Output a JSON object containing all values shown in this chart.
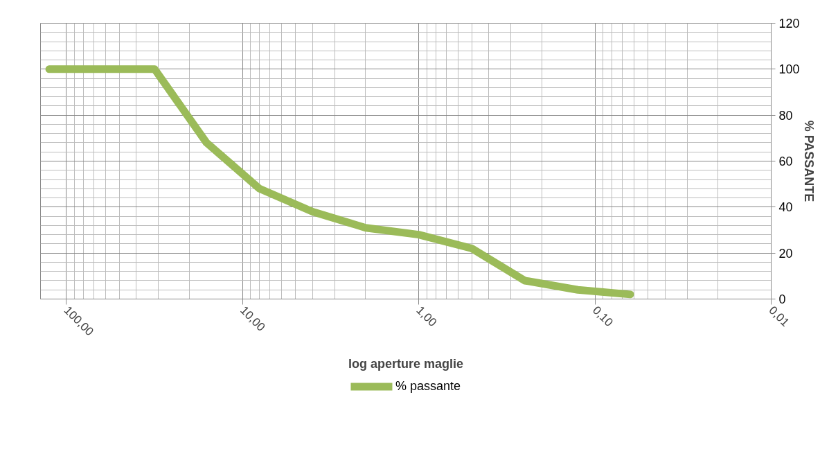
{
  "chart_data": {
    "type": "line",
    "xlabel": "log aperture maglie",
    "ylabel": "% PASSANTE",
    "x": [
      125,
      31.5,
      16,
      8,
      4,
      2,
      1,
      0.5,
      0.25,
      0.125,
      0.063
    ],
    "series": [
      {
        "name": "% passante",
        "color": "#9bbb59",
        "values": [
          100,
          100,
          68,
          48,
          38,
          31,
          28,
          22,
          8,
          4,
          2
        ]
      }
    ],
    "log": "x",
    "xlim": [
      140,
      0.01
    ],
    "xticks": [
      {
        "value": 100,
        "label": "100,00"
      },
      {
        "value": 10,
        "label": "10,00"
      },
      {
        "value": 1,
        "label": "1,00"
      },
      {
        "value": 0.1,
        "label": "0,10"
      },
      {
        "value": 0.01,
        "label": "0,01"
      }
    ],
    "ylim": [
      0,
      120
    ],
    "yticks": [
      0,
      20,
      40,
      60,
      80,
      100,
      120
    ],
    "grid": true,
    "legend": "bottom",
    "marker": "none",
    "line_style": "solid"
  }
}
